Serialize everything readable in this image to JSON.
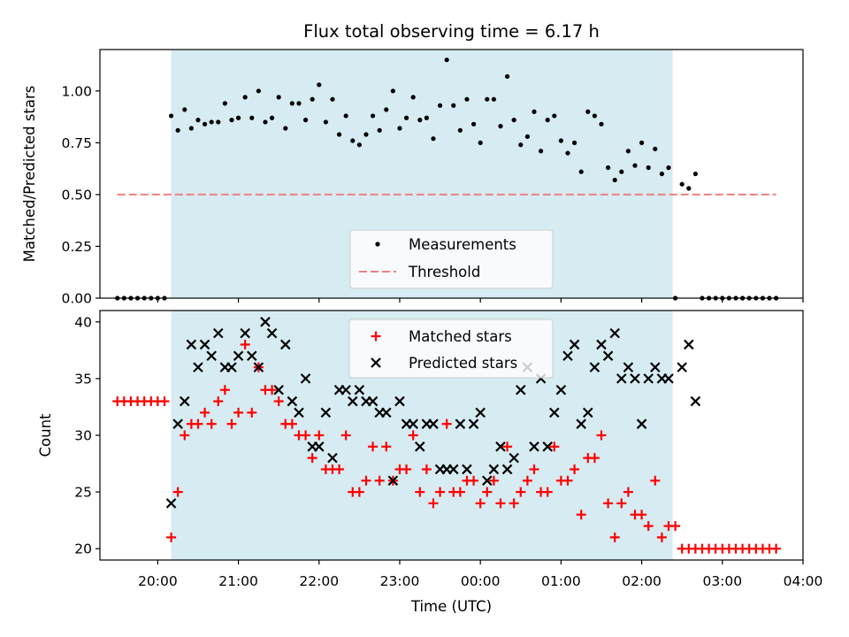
{
  "chart_data": [
    {
      "type": "scatter",
      "title": "Flux total observing time = 6.17 h",
      "ylabel": "Matched/Predicted stars",
      "xlim": [
        "19:17",
        "04:00"
      ],
      "ylim": [
        0,
        1.2
      ],
      "yticks": [
        0.0,
        0.25,
        0.5,
        0.75,
        1.0
      ],
      "ytick_labels": [
        "0.00",
        "0.25",
        "0.50",
        "0.75",
        "1.00"
      ],
      "shaded_span": [
        "20:10",
        "02:23"
      ],
      "shade_color": "#add8e6",
      "legend": {
        "placement": "lower-center",
        "entries": [
          "Measurements",
          "Threshold"
        ]
      },
      "series": [
        {
          "name": "Measurements",
          "marker": "dot",
          "color": "#000000",
          "x": [
            "19:30",
            "19:35",
            "19:40",
            "19:45",
            "19:50",
            "19:55",
            "20:00",
            "20:05",
            "20:10",
            "20:15",
            "20:20",
            "20:25",
            "20:30",
            "20:35",
            "20:40",
            "20:45",
            "20:50",
            "20:55",
            "21:00",
            "21:05",
            "21:10",
            "21:15",
            "21:20",
            "21:25",
            "21:30",
            "21:35",
            "21:40",
            "21:45",
            "21:50",
            "21:55",
            "22:00",
            "22:05",
            "22:10",
            "22:15",
            "22:20",
            "22:25",
            "22:30",
            "22:35",
            "22:40",
            "22:45",
            "22:50",
            "22:55",
            "23:00",
            "23:05",
            "23:10",
            "23:15",
            "23:20",
            "23:25",
            "23:30",
            "23:35",
            "23:40",
            "23:45",
            "23:50",
            "23:55",
            "00:00",
            "00:05",
            "00:10",
            "00:15",
            "00:20",
            "00:25",
            "00:30",
            "00:35",
            "00:40",
            "00:45",
            "00:50",
            "00:55",
            "01:00",
            "01:05",
            "01:10",
            "01:15",
            "01:20",
            "01:25",
            "01:30",
            "01:35",
            "01:40",
            "01:45",
            "01:50",
            "01:55",
            "02:00",
            "02:05",
            "02:10",
            "02:15",
            "02:20",
            "02:25",
            "02:30",
            "02:35",
            "02:40",
            "02:45",
            "02:50",
            "02:55",
            "03:00",
            "03:05",
            "03:10",
            "03:15",
            "03:20",
            "03:25",
            "03:30",
            "03:35",
            "03:40"
          ],
          "y": [
            0,
            0,
            0,
            0,
            0,
            0,
            0,
            0,
            0.88,
            0.81,
            0.91,
            0.82,
            0.86,
            0.84,
            0.85,
            0.85,
            0.94,
            0.86,
            0.87,
            0.97,
            0.87,
            1.0,
            0.85,
            0.87,
            0.97,
            0.82,
            0.94,
            0.94,
            0.86,
            0.96,
            1.03,
            0.85,
            0.96,
            0.79,
            0.88,
            0.76,
            0.74,
            0.79,
            0.88,
            0.81,
            0.91,
            1.0,
            0.82,
            0.87,
            0.97,
            0.86,
            0.87,
            0.77,
            0.93,
            1.15,
            0.93,
            0.81,
            0.96,
            0.84,
            0.75,
            0.96,
            0.96,
            0.83,
            1.07,
            0.86,
            0.74,
            0.78,
            0.9,
            0.71,
            0.86,
            0.88,
            0.76,
            0.7,
            0.75,
            0.61,
            0.9,
            0.88,
            0.84,
            0.63,
            0.57,
            0.61,
            0.71,
            0.64,
            0.75,
            0.63,
            0.72,
            0.6,
            0.63,
            0,
            0.55,
            0.53,
            0.6,
            0,
            0,
            0,
            0,
            0,
            0,
            0,
            0,
            0,
            0,
            0,
            0
          ]
        },
        {
          "name": "Threshold",
          "marker": "dashed-line",
          "color": "#f08080",
          "x": [
            "19:30",
            "03:40"
          ],
          "y": [
            0.5,
            0.5
          ]
        }
      ]
    },
    {
      "type": "scatter",
      "xlabel": "Time (UTC)",
      "ylabel": "Count",
      "xlim": [
        "19:17",
        "04:00"
      ],
      "ylim": [
        19,
        41
      ],
      "yticks": [
        20,
        25,
        30,
        35,
        40
      ],
      "xticks": [
        "20:00",
        "21:00",
        "22:00",
        "23:00",
        "00:00",
        "01:00",
        "02:00",
        "03:00",
        "04:00"
      ],
      "shaded_span": [
        "20:10",
        "02:23"
      ],
      "shade_color": "#add8e6",
      "legend": {
        "placement": "upper-center",
        "entries": [
          "Matched stars",
          "Predicted stars"
        ]
      },
      "series": [
        {
          "name": "Matched stars",
          "marker": "plus",
          "color": "#ff0000",
          "x": [
            "19:30",
            "19:35",
            "19:40",
            "19:45",
            "19:50",
            "19:55",
            "20:00",
            "20:05",
            "20:10",
            "20:15",
            "20:20",
            "20:25",
            "20:30",
            "20:35",
            "20:40",
            "20:45",
            "20:50",
            "20:55",
            "21:00",
            "21:05",
            "21:10",
            "21:15",
            "21:20",
            "21:25",
            "21:30",
            "21:35",
            "21:40",
            "21:45",
            "21:50",
            "21:55",
            "22:00",
            "22:05",
            "22:10",
            "22:15",
            "22:20",
            "22:25",
            "22:30",
            "22:35",
            "22:40",
            "22:45",
            "22:50",
            "22:55",
            "23:00",
            "23:05",
            "23:10",
            "23:15",
            "23:20",
            "23:25",
            "23:30",
            "23:35",
            "23:40",
            "23:45",
            "23:50",
            "23:55",
            "00:00",
            "00:05",
            "00:10",
            "00:15",
            "00:20",
            "00:25",
            "00:30",
            "00:35",
            "00:40",
            "00:45",
            "00:50",
            "00:55",
            "01:00",
            "01:05",
            "01:10",
            "01:15",
            "01:20",
            "01:25",
            "01:30",
            "01:35",
            "01:40",
            "01:45",
            "01:50",
            "01:55",
            "02:00",
            "02:05",
            "02:10",
            "02:15",
            "02:20",
            "02:25",
            "02:30",
            "02:35",
            "02:40",
            "02:45",
            "02:50",
            "02:55",
            "03:00",
            "03:05",
            "03:10",
            "03:15",
            "03:20",
            "03:25",
            "03:30",
            "03:35",
            "03:40"
          ],
          "y": [
            33,
            33,
            33,
            33,
            33,
            33,
            33,
            33,
            21,
            25,
            30,
            31,
            31,
            32,
            31,
            33,
            34,
            31,
            32,
            38,
            32,
            36,
            34,
            34,
            33,
            31,
            31,
            30,
            30,
            28,
            30,
            27,
            27,
            27,
            30,
            25,
            25,
            26,
            29,
            26,
            29,
            26,
            27,
            27,
            30,
            25,
            27,
            24,
            25,
            31,
            25,
            25,
            26,
            26,
            24,
            25,
            26,
            24,
            29,
            24,
            25,
            26,
            27,
            25,
            25,
            29,
            26,
            26,
            27,
            23,
            28,
            28,
            30,
            24,
            21,
            24,
            25,
            23,
            23,
            22,
            26,
            21,
            22,
            22,
            20,
            20,
            20,
            20,
            20,
            20,
            20,
            20,
            20,
            20,
            20,
            20,
            20,
            20,
            20
          ]
        },
        {
          "name": "Predicted stars",
          "marker": "x",
          "color": "#000000",
          "x": [
            "20:10",
            "20:15",
            "20:20",
            "20:25",
            "20:30",
            "20:35",
            "20:40",
            "20:45",
            "20:50",
            "20:55",
            "21:00",
            "21:05",
            "21:10",
            "21:15",
            "21:20",
            "21:25",
            "21:30",
            "21:35",
            "21:40",
            "21:45",
            "21:50",
            "21:55",
            "22:00",
            "22:05",
            "22:10",
            "22:15",
            "22:20",
            "22:25",
            "22:30",
            "22:35",
            "22:40",
            "22:45",
            "22:50",
            "22:55",
            "23:00",
            "23:05",
            "23:10",
            "23:15",
            "23:20",
            "23:25",
            "23:30",
            "23:35",
            "23:40",
            "23:45",
            "23:50",
            "23:55",
            "00:00",
            "00:05",
            "00:10",
            "00:15",
            "00:20",
            "00:25",
            "00:30",
            "00:35",
            "00:40",
            "00:45",
            "00:50",
            "00:55",
            "01:00",
            "01:05",
            "01:10",
            "01:15",
            "01:20",
            "01:25",
            "01:30",
            "01:35",
            "01:40",
            "01:45",
            "01:50",
            "01:55",
            "02:00",
            "02:05",
            "02:10",
            "02:15",
            "02:20",
            "02:30",
            "02:35",
            "02:40"
          ],
          "y": [
            24,
            31,
            33,
            38,
            36,
            38,
            37,
            39,
            36,
            36,
            37,
            39,
            37,
            36,
            40,
            39,
            34,
            38,
            33,
            32,
            35,
            29,
            29,
            32,
            28,
            34,
            34,
            33,
            34,
            33,
            33,
            32,
            32,
            26,
            33,
            31,
            31,
            29,
            31,
            31,
            27,
            27,
            27,
            31,
            27,
            31,
            32,
            26,
            27,
            29,
            27,
            28,
            34,
            36,
            29,
            35,
            29,
            32,
            34,
            37,
            38,
            31,
            32,
            36,
            38,
            37,
            39,
            35,
            36,
            35,
            31,
            35,
            36,
            35,
            35,
            36,
            38,
            33
          ]
        }
      ]
    }
  ]
}
